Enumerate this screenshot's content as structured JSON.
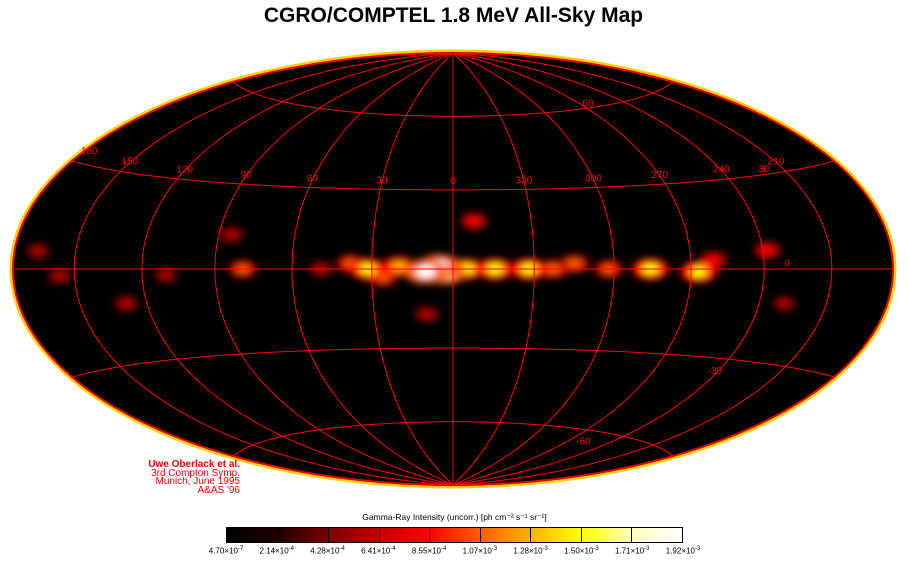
{
  "title": "CGRO/COMPTEL 1.8 MeV All-Sky Map",
  "credits": [
    "Uwe Oberlack et al.",
    "3rd Compton Symp.",
    "Munich, June 1995",
    "A&AS '96"
  ],
  "colorbar": {
    "title": "Gamma-Ray Intensity (uncorr.) [ph cm⁻² s⁻¹ sr⁻¹]",
    "tick_labels": [
      {
        "mantissa": "4.70×10",
        "exp": "-7"
      },
      {
        "mantissa": "2.14×10",
        "exp": "-4"
      },
      {
        "mantissa": "4.28×10",
        "exp": "-4"
      },
      {
        "mantissa": "6.41×10",
        "exp": "-4"
      },
      {
        "mantissa": "8.55×10",
        "exp": "-4"
      },
      {
        "mantissa": "1.07×10",
        "exp": "-3"
      },
      {
        "mantissa": "1.28×10",
        "exp": "-3"
      },
      {
        "mantissa": "1.50×10",
        "exp": "-3"
      },
      {
        "mantissa": "1.71×10",
        "exp": "-3"
      },
      {
        "mantissa": "1.92×10",
        "exp": "-3"
      }
    ],
    "colors": [
      "#000000",
      "#200000",
      "#7a0000",
      "#c00000",
      "#ff0000",
      "#ff6000",
      "#ffb000",
      "#ffff00",
      "#ffffc0",
      "#ffffff"
    ]
  },
  "chart_data": {
    "type": "heatmap",
    "projection": "Hammer-Aitoff, galactic coordinates",
    "grid": true,
    "grid_color": "#ff0000",
    "longitude_labels": [
      "180",
      "150",
      "120",
      "90",
      "60",
      "30",
      "0",
      "330",
      "300",
      "270",
      "240",
      "210"
    ],
    "longitude_values": [
      180,
      150,
      120,
      90,
      60,
      30,
      0,
      -30,
      -60,
      -90,
      -120,
      -150
    ],
    "latitude_labels": [
      "60",
      "30",
      "0",
      "-30",
      "-60"
    ],
    "latitude_values": [
      60,
      30,
      0,
      -30,
      -60
    ],
    "emission_regions": [
      {
        "l": 10,
        "b": -1,
        "intensity": 1.0
      },
      {
        "l": 5,
        "b": 1,
        "intensity": 0.95
      },
      {
        "l": 2.5,
        "b": -1.5,
        "intensity": 0.85
      },
      {
        "l": 20,
        "b": 1,
        "intensity": 0.6
      },
      {
        "l": 31.5,
        "b": 0,
        "intensity": 0.75
      },
      {
        "l": 26,
        "b": -3,
        "intensity": 0.5
      },
      {
        "l": 38,
        "b": 2,
        "intensity": 0.45
      },
      {
        "l": 355,
        "b": 0,
        "intensity": 0.7
      },
      {
        "l": 344.5,
        "b": 0,
        "intensity": 0.75
      },
      {
        "l": 332,
        "b": 0,
        "intensity": 0.75
      },
      {
        "l": 323,
        "b": 0,
        "intensity": 0.55
      },
      {
        "l": 315,
        "b": 2,
        "intensity": 0.5
      },
      {
        "l": 302,
        "b": 0,
        "intensity": 0.45
      },
      {
        "l": 286,
        "b": 0,
        "intensity": 0.75
      },
      {
        "l": 267,
        "b": -1,
        "intensity": 0.75
      },
      {
        "l": 261,
        "b": 3,
        "intensity": 0.4
      },
      {
        "l": 238,
        "b": 6,
        "intensity": 0.35
      },
      {
        "l": 79,
        "b": 0,
        "intensity": 0.45
      },
      {
        "l": 49,
        "b": 0,
        "intensity": 0.3
      },
      {
        "l": 157,
        "b": -2,
        "intensity": 0.3
      },
      {
        "l": 352,
        "b": 18,
        "intensity": 0.35
      },
      {
        "l": 10,
        "b": -17,
        "intensity": 0.3
      },
      {
        "l": 85,
        "b": 12,
        "intensity": 0.3
      },
      {
        "l": 129,
        "b": -11,
        "intensity": 0.3
      },
      {
        "l": 229,
        "b": -11,
        "intensity": 0.25
      },
      {
        "l": 110,
        "b": -2,
        "intensity": 0.25
      },
      {
        "l": 168,
        "b": 5,
        "intensity": 0.25
      }
    ]
  }
}
